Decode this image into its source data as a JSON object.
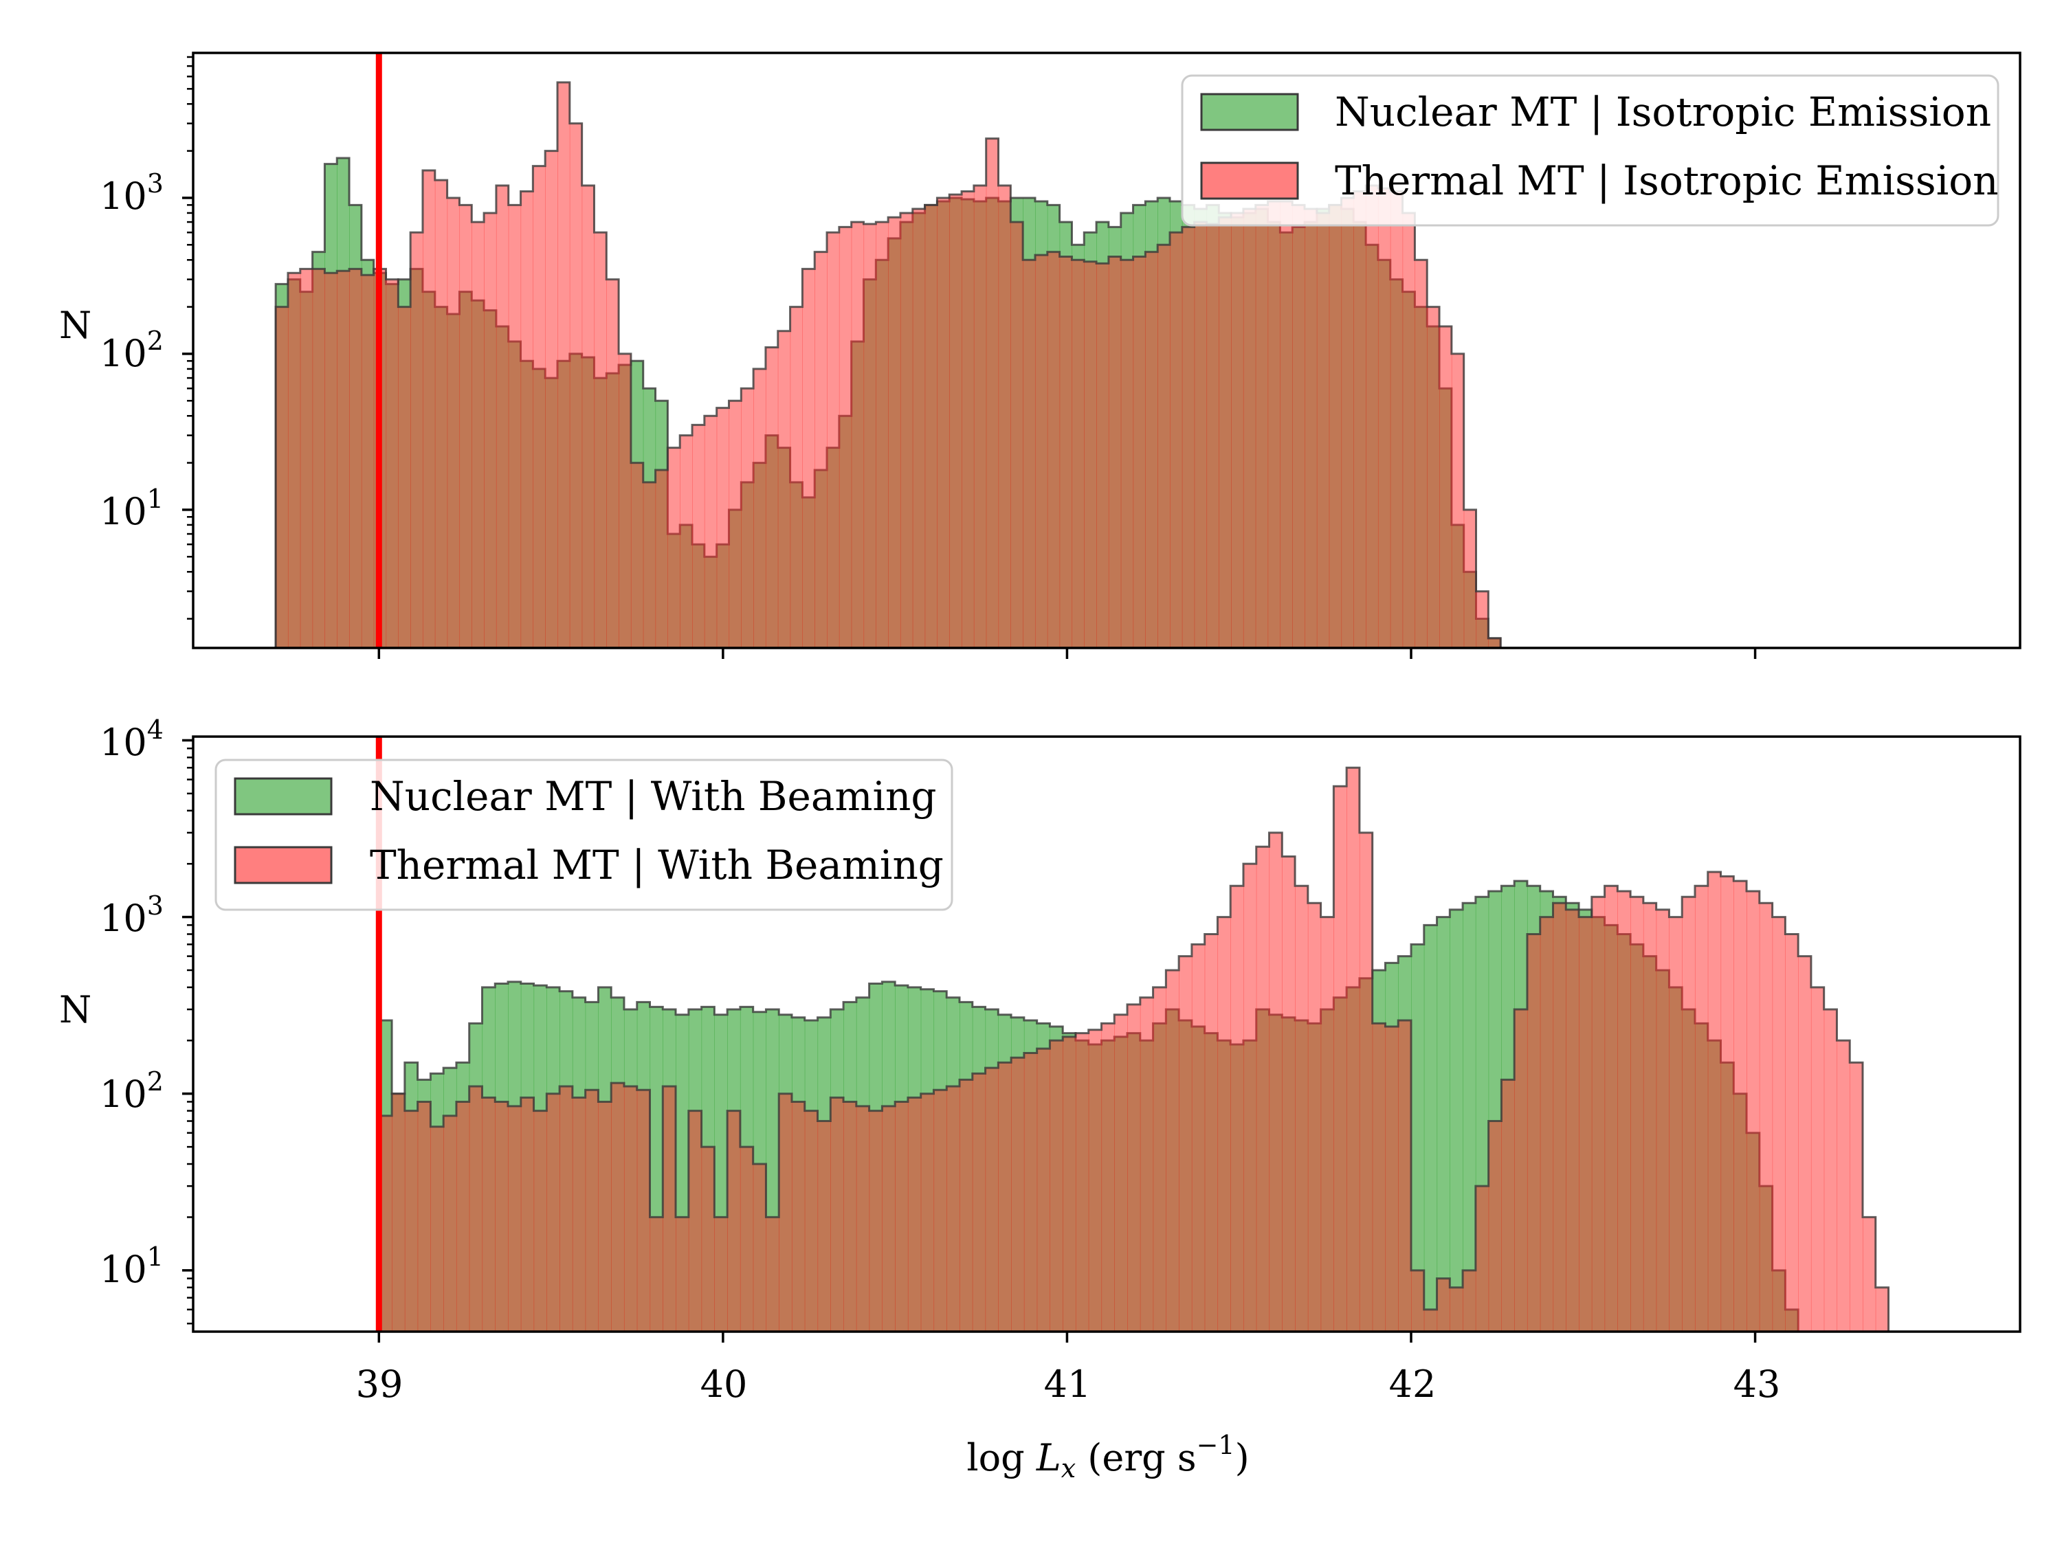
{
  "colors": {
    "nuclear": "#2ca02c",
    "thermal": "#ff2a2a",
    "overlap": "#c0603f",
    "edge": "#3a3a3a",
    "threshold_line": "#ff0000"
  },
  "chart_data": [
    {
      "type": "histogram",
      "scale": "log",
      "xlim": [
        38.46,
        43.77
      ],
      "ylim": [
        1.3,
        8500
      ],
      "ylabel": "N",
      "y_tick_labels": [
        {
          "value": 10,
          "base": "10",
          "exp": "1"
        },
        {
          "value": 100,
          "base": "10",
          "exp": "2"
        },
        {
          "value": 1000,
          "base": "10",
          "exp": "3"
        }
      ],
      "x_ticks": [
        39,
        40,
        41,
        42,
        43
      ],
      "show_x_tick_labels": false,
      "vline": 39.0,
      "legend_position": "top-right",
      "bin_width": 0.0356,
      "series": [
        {
          "name": "Nuclear MT | Isotropic Emission",
          "color": "nuclear",
          "start": 38.7,
          "values": [
            280,
            300,
            250,
            450,
            1650,
            1800,
            900,
            400,
            330,
            280,
            300,
            350,
            250,
            200,
            180,
            250,
            220,
            190,
            150,
            120,
            90,
            80,
            70,
            90,
            100,
            95,
            70,
            75,
            85,
            90,
            60,
            50,
            7,
            8,
            6,
            5,
            6,
            10,
            15,
            20,
            30,
            25,
            15,
            12,
            18,
            25,
            40,
            120,
            300,
            400,
            550,
            700,
            800,
            900,
            950,
            1000,
            980,
            950,
            1000,
            950,
            1000,
            1000,
            950,
            900,
            700,
            500,
            600,
            700,
            650,
            800,
            900,
            950,
            1000,
            950,
            900,
            850,
            900,
            800,
            750,
            800,
            850,
            700,
            600,
            650,
            700,
            850,
            900,
            850,
            700,
            500,
            400,
            300,
            250,
            200,
            150,
            60,
            8,
            4,
            2,
            1.5
          ]
        },
        {
          "name": "Thermal MT | Isotropic Emission",
          "color": "thermal",
          "start": 38.7,
          "values": [
            200,
            330,
            350,
            350,
            330,
            340,
            350,
            320,
            350,
            300,
            200,
            600,
            1500,
            1300,
            1000,
            900,
            700,
            800,
            1200,
            900,
            1100,
            1600,
            2000,
            5500,
            3000,
            1200,
            600,
            300,
            100,
            20,
            15,
            18,
            25,
            30,
            35,
            40,
            45,
            50,
            60,
            80,
            110,
            140,
            200,
            350,
            450,
            600,
            650,
            700,
            680,
            700,
            750,
            800,
            850,
            900,
            1000,
            1050,
            1100,
            1200,
            2400,
            1200,
            700,
            400,
            430,
            450,
            420,
            400,
            390,
            380,
            420,
            400,
            420,
            450,
            500,
            600,
            650,
            700,
            680,
            750,
            800,
            850,
            900,
            950,
            950,
            900,
            850,
            800,
            900,
            1000,
            1100,
            1200,
            1150,
            1100,
            800,
            400,
            200,
            150,
            100,
            10,
            3,
            1.5
          ]
        }
      ]
    },
    {
      "type": "histogram",
      "scale": "log",
      "xlim": [
        38.46,
        43.77
      ],
      "ylim": [
        4.5,
        10500
      ],
      "ylabel": "N",
      "xlabel": "log L_x (erg s^-1)",
      "y_tick_labels": [
        {
          "value": 10,
          "base": "10",
          "exp": "1"
        },
        {
          "value": 100,
          "base": "10",
          "exp": "2"
        },
        {
          "value": 1000,
          "base": "10",
          "exp": "3"
        },
        {
          "value": 10000,
          "base": "10",
          "exp": "4"
        }
      ],
      "x_ticks": [
        39,
        40,
        41,
        42,
        43
      ],
      "x_tick_labels": [
        "39",
        "40",
        "41",
        "42",
        "43"
      ],
      "vline": 39.0,
      "legend_position": "top-left",
      "bin_width": 0.0375,
      "series": [
        {
          "name": "Nuclear MT | With Beaming",
          "color": "nuclear",
          "start": 39.0,
          "values": [
            260,
            100,
            150,
            120,
            130,
            140,
            150,
            250,
            400,
            420,
            430,
            420,
            410,
            400,
            380,
            350,
            330,
            400,
            350,
            300,
            330,
            310,
            300,
            280,
            300,
            310,
            280,
            300,
            310,
            290,
            300,
            280,
            270,
            260,
            270,
            300,
            330,
            350,
            420,
            430,
            410,
            400,
            390,
            380,
            350,
            330,
            310,
            300,
            280,
            270,
            260,
            250,
            240,
            220,
            200,
            190,
            200,
            210,
            220,
            200,
            250,
            300,
            260,
            240,
            220,
            200,
            190,
            200,
            300,
            280,
            270,
            260,
            250,
            300,
            350,
            400,
            450,
            500,
            550,
            600,
            700,
            900,
            1000,
            1100,
            1200,
            1300,
            1400,
            1500,
            1600,
            1500,
            1400,
            1300,
            1200,
            1100,
            1000,
            900,
            800,
            700,
            600,
            500,
            400,
            300,
            250,
            200,
            150,
            100,
            60,
            30,
            10,
            6,
            4.5
          ]
        },
        {
          "name": "Thermal MT | With Beaming",
          "color": "thermal",
          "start": 39.0,
          "values": [
            75,
            100,
            80,
            90,
            65,
            75,
            90,
            110,
            95,
            90,
            85,
            95,
            80,
            100,
            110,
            95,
            105,
            90,
            115,
            110,
            105,
            20,
            110,
            20,
            80,
            50,
            20,
            80,
            50,
            40,
            20,
            100,
            90,
            80,
            70,
            95,
            90,
            85,
            80,
            85,
            90,
            95,
            100,
            105,
            110,
            120,
            130,
            140,
            150,
            160,
            170,
            180,
            200,
            210,
            220,
            230,
            250,
            280,
            320,
            350,
            400,
            500,
            600,
            700,
            800,
            1000,
            1500,
            2000,
            2500,
            3000,
            2200,
            1500,
            1200,
            1000,
            5500,
            7000,
            3000,
            250,
            240,
            260,
            10,
            6,
            9,
            8,
            10,
            30,
            70,
            120,
            300,
            800,
            1000,
            1200,
            1100,
            1000,
            1300,
            1500,
            1400,
            1300,
            1200,
            1100,
            1000,
            1300,
            1500,
            1800,
            1700,
            1600,
            1400,
            1200,
            1000,
            800,
            600,
            400,
            300,
            200,
            150,
            20,
            8,
            4.5
          ]
        }
      ]
    }
  ]
}
